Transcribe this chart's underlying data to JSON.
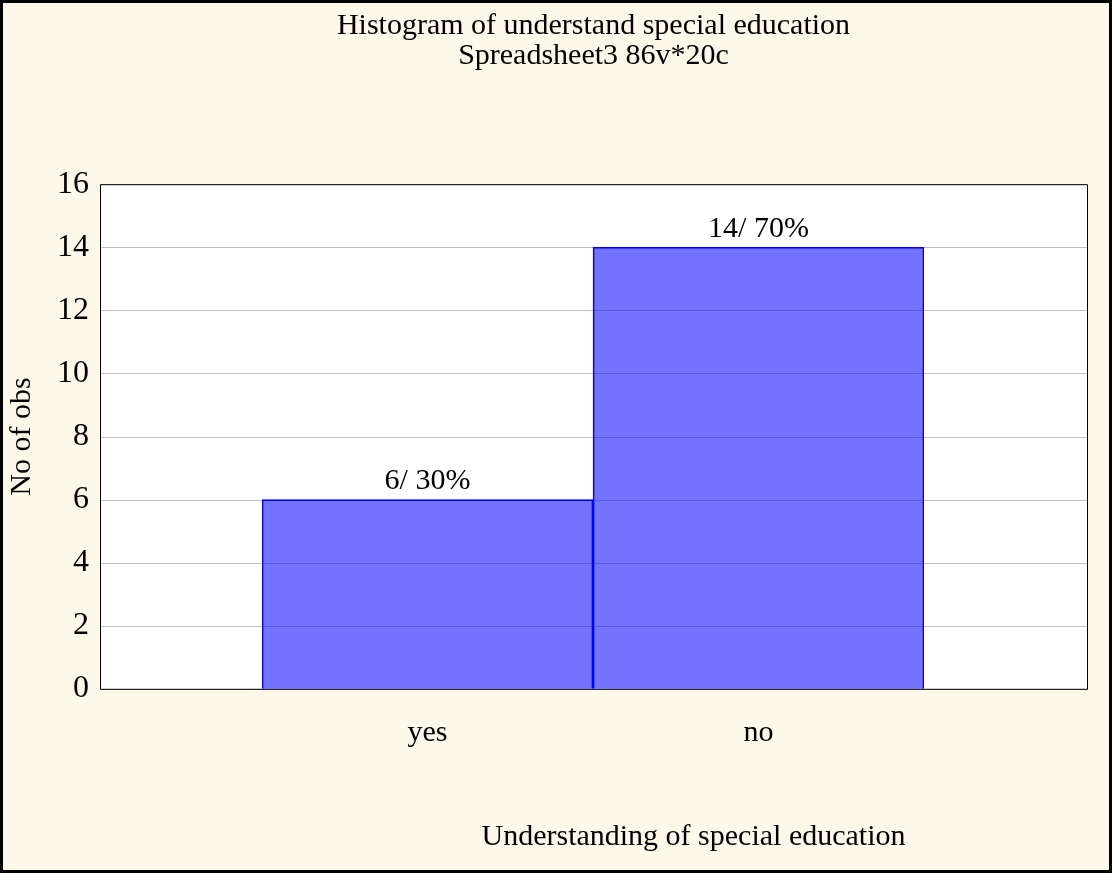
{
  "chart_data": {
    "type": "bar",
    "title": "Histogram of understand special education",
    "subtitle": "Spreadsheet3 86v*20c",
    "xlabel": "Understanding of special education",
    "ylabel": "No of obs",
    "categories": [
      "yes",
      "no"
    ],
    "values": [
      6,
      14
    ],
    "color": "#0000ff",
    "value_labels": [
      "6/ 30%",
      "14/ 70%"
    ],
    "ylim": [
      0,
      16
    ],
    "yticks": [
      0,
      2,
      4,
      6,
      8,
      10,
      12,
      14,
      16
    ],
    "grid": "y",
    "legend": false
  }
}
